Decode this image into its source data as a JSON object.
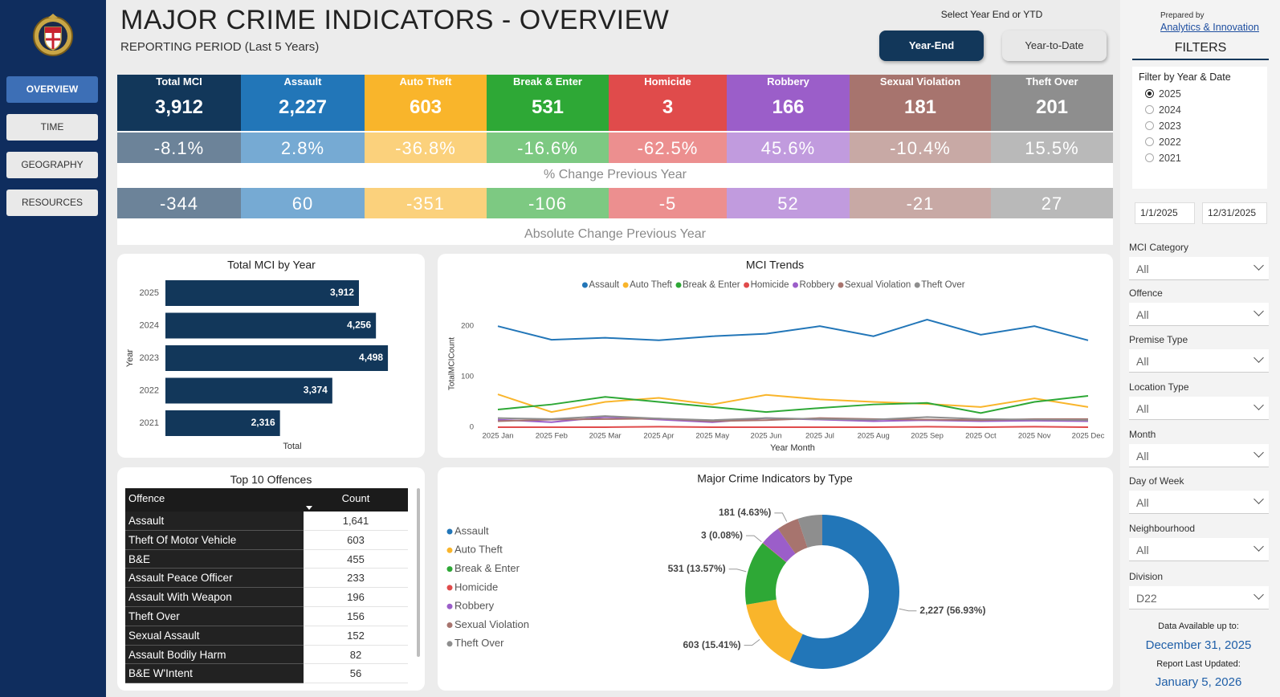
{
  "header": {
    "title": "MAJOR CRIME INDICATORS - OVERVIEW",
    "subtitle": "REPORTING PERIOD (Last 5 Years)",
    "toggle_label": "Select Year End or YTD",
    "toggle": [
      "Year-End",
      "Year-to-Date"
    ],
    "toggle_active": 0
  },
  "nav": {
    "items": [
      "OVERVIEW",
      "TIME",
      "GEOGRAPHY",
      "RESOURCES"
    ],
    "active": 0
  },
  "kpis": {
    "pct_caption": "% Change Previous Year",
    "abs_caption": "Absolute Change Previous Year",
    "items": [
      {
        "name": "Total MCI",
        "color": "#12375a",
        "total": "3,912",
        "pct": "-8.1%",
        "abs": "-344"
      },
      {
        "name": "Assault",
        "color": "#2276b8",
        "total": "2,227",
        "pct": "2.8%",
        "abs": "60"
      },
      {
        "name": "Auto Theft",
        "color": "#f9b52b",
        "total": "603",
        "pct": "-36.8%",
        "abs": "-351"
      },
      {
        "name": "Break & Enter",
        "color": "#2ea836",
        "total": "531",
        "pct": "-16.6%",
        "abs": "-106"
      },
      {
        "name": "Homicide",
        "color": "#e04b4b",
        "total": "3",
        "pct": "-62.5%",
        "abs": "-5"
      },
      {
        "name": "Robbery",
        "color": "#9b5ec9",
        "total": "166",
        "pct": "45.6%",
        "abs": "52"
      },
      {
        "name": "Sexual Violation",
        "color": "#a7746e",
        "total": "181",
        "pct": "-10.4%",
        "abs": "-21"
      },
      {
        "name": "Theft Over",
        "color": "#8e8e8e",
        "total": "201",
        "pct": "15.5%",
        "abs": "27"
      }
    ]
  },
  "chart_data": [
    {
      "type": "bar",
      "orientation": "horizontal",
      "title": "Total MCI by Year",
      "categories": [
        "2025",
        "2024",
        "2023",
        "2022",
        "2021"
      ],
      "values": [
        3912,
        4256,
        4498,
        3374,
        2316
      ],
      "value_labels": [
        "3,912",
        "4,256",
        "4,498",
        "3,374",
        "2,316"
      ],
      "color": "#12375a",
      "xlim": [
        0,
        5000
      ],
      "x_label": "Total",
      "y_label": "Year"
    },
    {
      "type": "line",
      "title": "MCI Trends",
      "categories": [
        "2025 Jan",
        "2025 Feb",
        "2025 Mar",
        "2025 Apr",
        "2025 May",
        "2025 Jun",
        "2025 Jul",
        "2025 Aug",
        "2025 Sep",
        "2025 Oct",
        "2025 Nov",
        "2025 Dec"
      ],
      "ylim": [
        0,
        240
      ],
      "yticks": [
        0,
        100,
        200
      ],
      "x_label": "Year Month",
      "y_label": "TotalMCICount",
      "series": [
        {
          "name": "Assault",
          "color": "#2276b8",
          "values": [
            200,
            173,
            177,
            172,
            180,
            185,
            200,
            180,
            213,
            183,
            200,
            172
          ]
        },
        {
          "name": "Auto Theft",
          "color": "#f9b52b",
          "values": [
            65,
            30,
            50,
            58,
            45,
            64,
            55,
            50,
            46,
            40,
            57,
            40
          ]
        },
        {
          "name": "Break & Enter",
          "color": "#2ea836",
          "values": [
            35,
            45,
            60,
            50,
            40,
            30,
            38,
            45,
            48,
            28,
            50,
            62
          ]
        },
        {
          "name": "Homicide",
          "color": "#e04b4b",
          "values": [
            0,
            0,
            0,
            1,
            0,
            0,
            0,
            0,
            1,
            0,
            1,
            0
          ]
        },
        {
          "name": "Robbery",
          "color": "#9b5ec9",
          "values": [
            15,
            10,
            20,
            15,
            10,
            18,
            15,
            12,
            14,
            12,
            13,
            12
          ]
        },
        {
          "name": "Sexual Violation",
          "color": "#a7746e",
          "values": [
            12,
            15,
            16,
            17,
            12,
            14,
            18,
            16,
            15,
            14,
            16,
            16
          ]
        },
        {
          "name": "Theft Over",
          "color": "#8e8e8e",
          "values": [
            18,
            16,
            22,
            17,
            14,
            18,
            16,
            15,
            20,
            16,
            15,
            14
          ]
        }
      ]
    },
    {
      "type": "donut",
      "title": "Major Crime Indicators by Type",
      "categories": [
        "Assault",
        "Auto Theft",
        "Break & Enter",
        "Homicide",
        "Robbery",
        "Sexual Violation",
        "Theft Over"
      ],
      "values": [
        2227,
        603,
        531,
        3,
        166,
        181,
        201
      ],
      "value_labels": [
        "2,227 (56.93%)",
        "603 (15.41%)",
        "531 (13.57%)",
        "3 (0.08%)",
        null,
        "181 (4.63%)",
        null
      ],
      "colors": [
        "#2276b8",
        "#f9b52b",
        "#2ea836",
        "#e04b4b",
        "#9b5ec9",
        "#a7746e",
        "#8e8e8e"
      ]
    }
  ],
  "top_offences": {
    "title": "Top 10 Offences",
    "columns": [
      "Offence",
      "Count"
    ],
    "rows": [
      [
        "Assault",
        "1,641"
      ],
      [
        "Theft Of Motor Vehicle",
        "603"
      ],
      [
        "B&E",
        "455"
      ],
      [
        "Assault Peace Officer",
        "233"
      ],
      [
        "Assault With Weapon",
        "196"
      ],
      [
        "Theft Over",
        "156"
      ],
      [
        "Sexual Assault",
        "152"
      ],
      [
        "Assault Bodily Harm",
        "82"
      ],
      [
        "B&E W'Intent",
        "56"
      ]
    ]
  },
  "filters": {
    "prepared_by": "Prepared by",
    "prepared_link": "Analytics & Innovation",
    "title": "FILTERS",
    "year_label": "Filter by Year & Date",
    "years": [
      "2025",
      "2024",
      "2023",
      "2022",
      "2021"
    ],
    "year_selected": 0,
    "dates": [
      "1/1/2025",
      "12/31/2025"
    ],
    "dropdowns": [
      {
        "label": "MCI Category",
        "value": "All"
      },
      {
        "label": "Offence",
        "value": "All"
      },
      {
        "label": "Premise Type",
        "value": "All"
      },
      {
        "label": "Location Type",
        "value": "All"
      },
      {
        "label": "Month",
        "value": "All"
      },
      {
        "label": "Day of Week",
        "value": "All"
      },
      {
        "label": "Neighbourhood",
        "value": "All"
      },
      {
        "label": "Division",
        "value": "D22"
      }
    ],
    "available_label": "Data Available up to:",
    "available_date": "December 31, 2025",
    "updated_label": "Report Last Updated:",
    "updated_date": "January 5, 2026"
  }
}
